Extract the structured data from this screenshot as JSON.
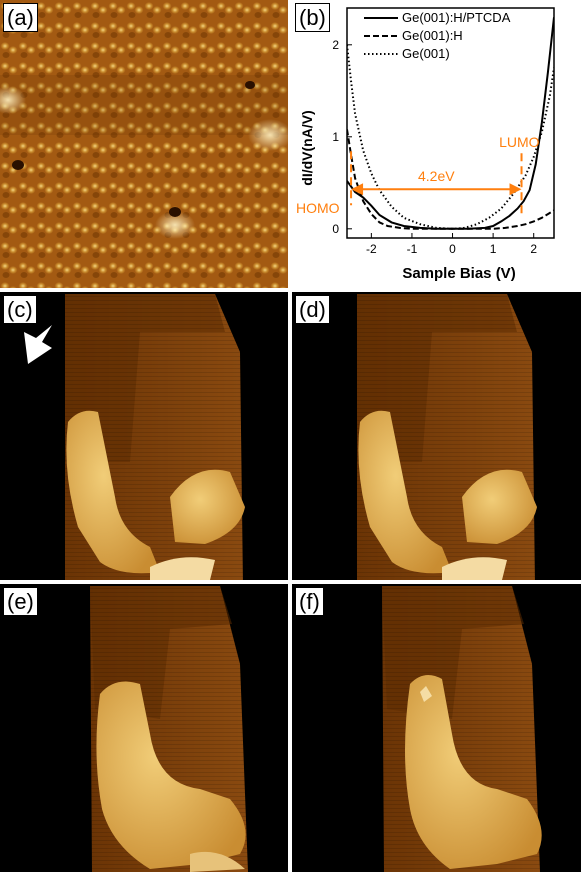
{
  "panels": {
    "a": {
      "label": "(a)"
    },
    "b": {
      "label": "(b)"
    },
    "c": {
      "label": "(c)"
    },
    "d": {
      "label": "(d)"
    },
    "e": {
      "label": "(e)"
    },
    "f": {
      "label": "(f)"
    }
  },
  "colors": {
    "stm_dark": "#5a2a00",
    "stm_mid": "#a55b12",
    "stm_bright": "#e9c064",
    "annotation": "#ff7f0e"
  },
  "chart_data": {
    "type": "line",
    "xlabel": "Sample Bias (V)",
    "ylabel": "dI/dV(nA/V)",
    "xlim": [
      -2.6,
      2.5
    ],
    "ylim": [
      -0.1,
      2.4
    ],
    "x_ticks": [
      -2,
      -1,
      0,
      1,
      2
    ],
    "y_ticks": [
      0,
      1,
      2
    ],
    "legend_position": "top-right",
    "series": [
      {
        "name": "Ge(001):H/PTCDA",
        "style": "solid",
        "points": [
          [
            -2.6,
            0.52
          ],
          [
            -2.4,
            0.4
          ],
          [
            -2.2,
            0.34
          ],
          [
            -2.0,
            0.25
          ],
          [
            -1.8,
            0.15
          ],
          [
            -1.5,
            0.07
          ],
          [
            -1.2,
            0.03
          ],
          [
            -0.8,
            0.01
          ],
          [
            -0.4,
            0.0
          ],
          [
            0,
            0.0
          ],
          [
            0.4,
            0.0
          ],
          [
            0.8,
            0.01
          ],
          [
            1.0,
            0.03
          ],
          [
            1.2,
            0.08
          ],
          [
            1.4,
            0.14
          ],
          [
            1.6,
            0.22
          ],
          [
            1.75,
            0.3
          ],
          [
            1.9,
            0.42
          ],
          [
            2.05,
            0.7
          ],
          [
            2.2,
            1.15
          ],
          [
            2.35,
            1.7
          ],
          [
            2.5,
            2.3
          ]
        ]
      },
      {
        "name": "Ge(001):H",
        "style": "dashed",
        "points": [
          [
            -2.6,
            1.08
          ],
          [
            -2.5,
            0.8
          ],
          [
            -2.4,
            0.55
          ],
          [
            -2.2,
            0.3
          ],
          [
            -2.0,
            0.16
          ],
          [
            -1.8,
            0.07
          ],
          [
            -1.6,
            0.03
          ],
          [
            -1.3,
            0.01
          ],
          [
            -1.0,
            0.0
          ],
          [
            0,
            0.0
          ],
          [
            1.0,
            0.0
          ],
          [
            1.3,
            0.01
          ],
          [
            1.6,
            0.03
          ],
          [
            1.8,
            0.05
          ],
          [
            2.0,
            0.08
          ],
          [
            2.2,
            0.12
          ],
          [
            2.35,
            0.16
          ],
          [
            2.5,
            0.2
          ]
        ]
      },
      {
        "name": "Ge(001)",
        "style": "dotted",
        "points": [
          [
            -2.6,
            2.0
          ],
          [
            -2.5,
            1.6
          ],
          [
            -2.4,
            1.25
          ],
          [
            -2.2,
            0.85
          ],
          [
            -2.0,
            0.6
          ],
          [
            -1.8,
            0.42
          ],
          [
            -1.5,
            0.24
          ],
          [
            -1.2,
            0.12
          ],
          [
            -0.8,
            0.05
          ],
          [
            -0.4,
            0.01
          ],
          [
            0,
            0.0
          ],
          [
            0.3,
            0.01
          ],
          [
            0.6,
            0.05
          ],
          [
            0.9,
            0.12
          ],
          [
            1.2,
            0.22
          ],
          [
            1.5,
            0.38
          ],
          [
            1.8,
            0.58
          ],
          [
            2.0,
            0.78
          ],
          [
            2.2,
            1.05
          ],
          [
            2.4,
            1.45
          ],
          [
            2.5,
            1.75
          ]
        ]
      }
    ],
    "annotations": {
      "gap_label": "4.2eV",
      "homo_label": "HOMO",
      "lumo_label": "LUMO",
      "homo_x": -2.5,
      "lumo_x": 1.7,
      "arrow_y": 0.43
    }
  }
}
